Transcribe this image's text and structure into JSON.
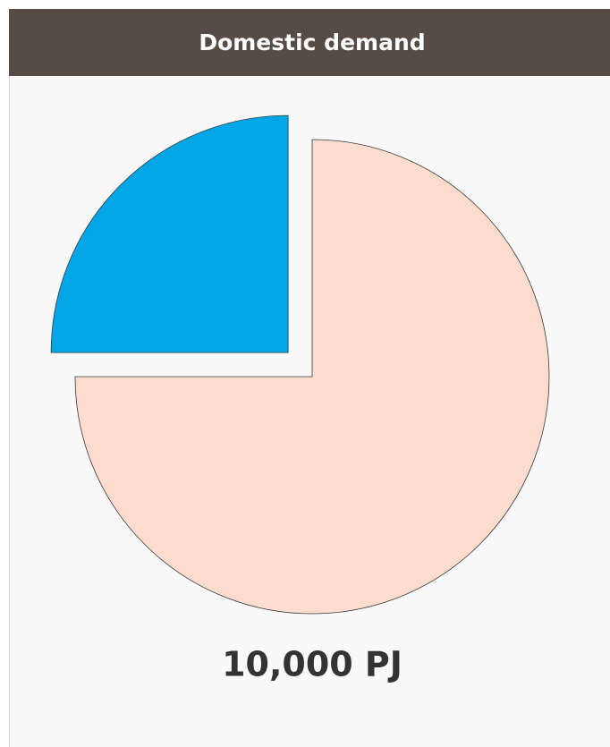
{
  "chart_data": {
    "type": "pie",
    "title": "Domestic demand",
    "values": [
      75,
      25
    ],
    "colors": [
      "#fddcd0",
      "#00a6e6"
    ],
    "exploded": [
      false,
      true
    ],
    "annotation": "10,000 PJ"
  }
}
